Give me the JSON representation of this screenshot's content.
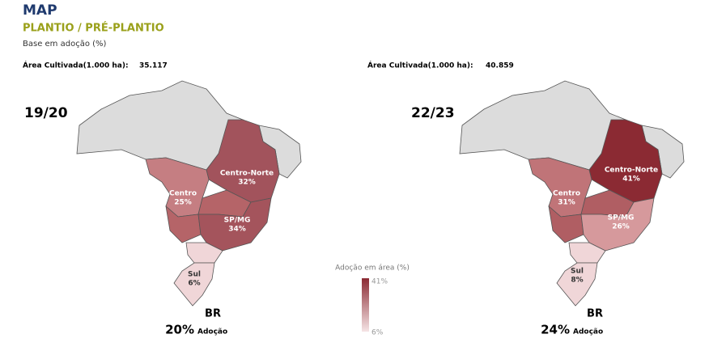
{
  "header": {
    "title": "MAP",
    "subtitle": "PLANTIO / PRÉ-PLANTIO",
    "note": "Base em adoção (%)"
  },
  "maps": [
    {
      "area_label": "Área Cultivada(1.000 ha):",
      "area_value": "35.117",
      "season": "19/20",
      "regions": [
        {
          "name": "Centro",
          "value": "25%"
        },
        {
          "name": "Centro-Norte",
          "value": "32%"
        },
        {
          "name": "SP/MG",
          "value": "34%"
        },
        {
          "name": "Sul",
          "value": "6%"
        }
      ],
      "br_label": "BR",
      "br_value": "20%",
      "br_unit": "Adoção"
    },
    {
      "area_label": "Área Cultivada(1.000 ha):",
      "area_value": "40.859",
      "season": "22/23",
      "regions": [
        {
          "name": "Centro",
          "value": "31%"
        },
        {
          "name": "Centro-Norte",
          "value": "41%"
        },
        {
          "name": "SP/MG",
          "value": "26%"
        },
        {
          "name": "Sul",
          "value": "8%"
        }
      ],
      "br_label": "BR",
      "br_value": "24%",
      "br_unit": "Adoção"
    }
  ],
  "legend": {
    "title": "Adoção em área (%)",
    "max": "41%",
    "min": "6%"
  }
}
